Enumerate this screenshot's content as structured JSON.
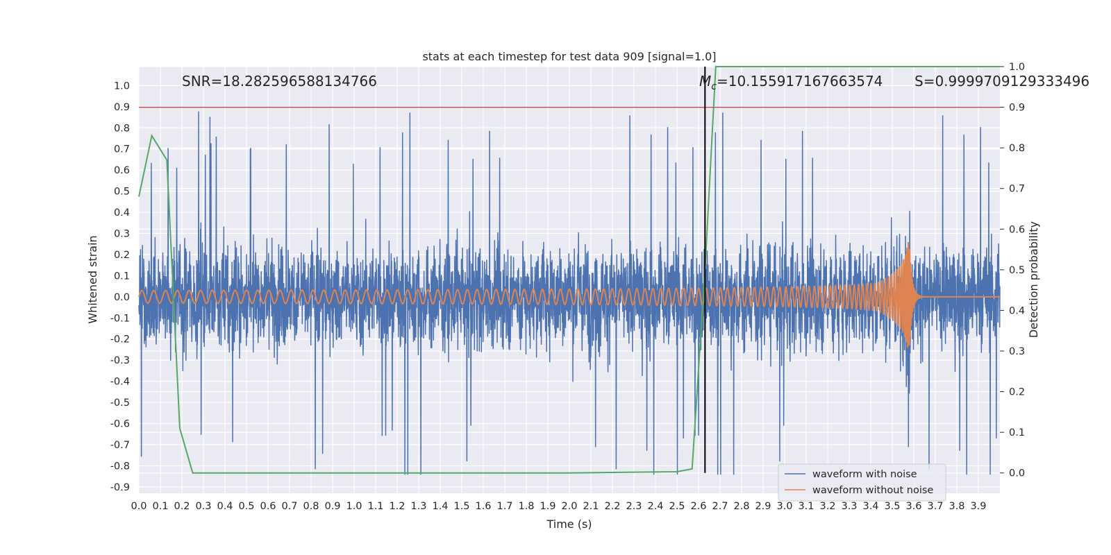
{
  "chart_data": {
    "type": "line",
    "title": "stats at each timestep for test data 909 [signal=1.0]",
    "xlabel": "Time (s)",
    "ylabel": "Whitened strain",
    "y2label": "Detection probability",
    "xlim": [
      0.0,
      4.0
    ],
    "ylim": [
      -0.93,
      1.09
    ],
    "y2lim": [
      -0.05,
      1.0
    ],
    "xticks": [
      "0.0",
      "0.1",
      "0.2",
      "0.3",
      "0.4",
      "0.5",
      "0.6",
      "0.7",
      "0.8",
      "0.9",
      "1.0",
      "1.1",
      "1.2",
      "1.3",
      "1.4",
      "1.5",
      "1.6",
      "1.7",
      "1.8",
      "1.9",
      "2.0",
      "2.1",
      "2.2",
      "2.3",
      "2.4",
      "2.5",
      "2.6",
      "2.7",
      "2.8",
      "2.9",
      "3.0",
      "3.1",
      "3.2",
      "3.3",
      "3.4",
      "3.5",
      "3.6",
      "3.7",
      "3.8",
      "3.9"
    ],
    "yticks": [
      "1.0",
      "0.9",
      "0.8",
      "0.7",
      "0.6",
      "0.5",
      "0.4",
      "0.3",
      "0.2",
      "0.1",
      "0.0",
      "-0.1",
      "-0.2",
      "-0.3",
      "-0.4",
      "-0.5",
      "-0.6",
      "-0.7",
      "-0.8",
      "-0.9"
    ],
    "y2ticks": [
      "1.0",
      "0.9",
      "0.8",
      "0.7",
      "0.6",
      "0.5",
      "0.4",
      "0.3",
      "0.2",
      "0.1",
      "0.0"
    ],
    "grid": true,
    "legend_position": "lower-right",
    "series": [
      {
        "name": "waveform with noise",
        "color": "#4c72b0",
        "axis": "left",
        "description_stats": {
          "typical_envelope": 0.3,
          "peak_max": 1.0,
          "peak_min": -0.84,
          "duration_s": 4.0
        }
      },
      {
        "name": "waveform without noise",
        "color": "#dd8452",
        "axis": "left",
        "chirp": {
          "start_amplitude": 0.03,
          "start_frequency_hz": 18,
          "merger_time_s": 3.58,
          "merger_amplitude": 0.45,
          "ringdown_s": 0.05
        }
      },
      {
        "color": "#55a868",
        "axis": "right",
        "x": [
          0.0,
          0.06,
          0.13,
          0.19,
          0.25,
          0.3,
          1.0,
          2.0,
          2.5,
          2.57,
          2.63,
          2.68,
          3.0,
          3.5,
          4.0
        ],
        "y": [
          0.68,
          0.83,
          0.77,
          0.11,
          0.0,
          0.0,
          0.0,
          0.0,
          0.003,
          0.01,
          0.5,
          1.0,
          1.0,
          1.0,
          1.0
        ]
      }
    ],
    "threshold_line": {
      "y2": 0.9,
      "color": "#c44e52"
    },
    "vertical_line": {
      "x": 2.63,
      "color": "#000000"
    },
    "annotations": {
      "snr_text": "SNR=18.282596588134766",
      "mc_prefix": "M",
      "mc_sub": "c",
      "mc_value": "=10.155917167663574",
      "s_text": "S=0.9999709129333496"
    }
  }
}
